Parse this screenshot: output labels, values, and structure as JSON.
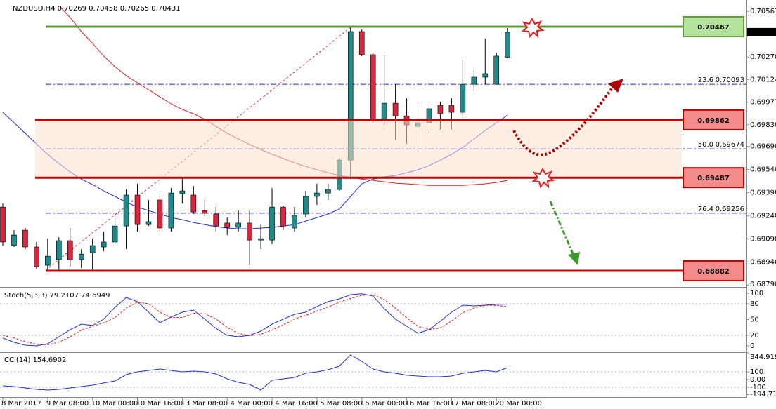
{
  "chart_data": [
    {
      "type": "candlestick",
      "title": "NZDUSD,H4 0.70269 0.70458 0.70265 0.70431",
      "categories": [
        "8 Mar 2017",
        null,
        null,
        null,
        "9 Mar 08:00",
        null,
        null,
        null,
        "10 Mar 00:00",
        null,
        null,
        null,
        "10 Mar 16:00",
        null,
        null,
        null,
        "13 Mar 08:00",
        null,
        null,
        null,
        "14 Mar 00:00",
        null,
        null,
        null,
        "14 Mar 16:00",
        null,
        null,
        null,
        "15 Mar 08:00",
        null,
        null,
        null,
        "16 Mar 00:00",
        null,
        null,
        null,
        "16 Mar 16:00",
        null,
        null,
        null,
        "17 Mar 08:00",
        null,
        null,
        null,
        "20 Mar 00:00",
        null
      ],
      "open": [
        0.69296,
        0.69046,
        0.69146,
        0.69037,
        0.68918,
        0.68955,
        0.69078,
        0.68955,
        0.69,
        0.69037,
        0.69069,
        0.69173,
        0.69374,
        0.69182,
        0.69342,
        0.6916,
        0.69383,
        0.69374,
        0.69273,
        0.69251,
        0.69192,
        0.69164,
        0.69192,
        0.69082,
        0.69082,
        0.69296,
        0.6916,
        0.69251,
        0.69365,
        0.69387,
        0.6941,
        0.69601,
        0.70435,
        0.70285,
        0.69857,
        0.6997,
        0.69888,
        0.6982,
        0.69843,
        0.69957,
        0.69957,
        0.69911,
        0.70093,
        0.70139,
        0.70093,
        0.70269
      ],
      "high": [
        0.69319,
        0.69146,
        0.6916,
        0.69069,
        0.69091,
        0.691,
        0.6916,
        0.69023,
        0.69091,
        0.69137,
        0.69251,
        0.6941,
        0.69447,
        0.69342,
        0.69387,
        0.69419,
        0.69478,
        0.69433,
        0.69342,
        0.69296,
        0.69228,
        0.69273,
        0.69273,
        0.69182,
        0.69419,
        0.69305,
        0.69296,
        0.69401,
        0.69447,
        0.69447,
        0.69615,
        0.70467,
        0.70449,
        0.70298,
        0.70285,
        0.70093,
        0.70002,
        0.69957,
        0.6998,
        0.6998,
        0.70002,
        0.70253,
        0.70184,
        0.70389,
        0.70298,
        0.70458
      ],
      "low": [
        0.69046,
        0.69037,
        0.69023,
        0.68895,
        0.68886,
        0.68886,
        0.68909,
        0.689,
        0.68886,
        0.69009,
        0.69055,
        0.69023,
        0.69137,
        0.69173,
        0.69137,
        0.69137,
        0.69319,
        0.69251,
        0.69237,
        0.69137,
        0.69114,
        0.69137,
        0.68918,
        0.69023,
        0.69055,
        0.69146,
        0.69137,
        0.69228,
        0.6931,
        0.69342,
        0.69401,
        0.69478,
        0.70276,
        0.69843,
        0.69829,
        0.69729,
        0.69706,
        0.69683,
        0.69775,
        0.69797,
        0.69797,
        0.69888,
        0.70048,
        0.70093,
        0.70093,
        0.70265
      ],
      "close": [
        0.69069,
        0.69114,
        0.69037,
        0.68909,
        0.68977,
        0.69078,
        0.68955,
        0.68991,
        0.69046,
        0.69069,
        0.69173,
        0.69374,
        0.69182,
        0.69201,
        0.6916,
        0.69387,
        0.69401,
        0.69264,
        0.69255,
        0.69173,
        0.69164,
        0.69192,
        0.69082,
        0.69091,
        0.69296,
        0.69173,
        0.69242,
        0.69365,
        0.69387,
        0.6941,
        0.69601,
        0.70435,
        0.70285,
        0.69857,
        0.6997,
        0.69888,
        0.69829,
        0.69843,
        0.69934,
        0.69902,
        0.69911,
        0.70093,
        0.70139,
        0.70162,
        0.70276,
        0.70431
      ],
      "up_color": "#1e8c8c",
      "down_color": "#d9263f",
      "lines": [
        {
          "color": "#e02020",
          "values": [
            null,
            null,
            null,
            null,
            null,
            0.70604,
            0.70526,
            0.70435,
            0.70358,
            0.70276,
            0.70207,
            0.70148,
            0.70103,
            0.70057,
            0.70011,
            0.69966,
            0.69929,
            0.69902,
            0.69866,
            0.6982,
            0.69775,
            0.69738,
            0.69702,
            0.6967,
            0.69638,
            0.69611,
            0.69583,
            0.6956,
            0.69538,
            0.69519,
            0.69501,
            0.69488,
            0.69478,
            0.69469,
            0.6946,
            0.69451,
            0.69447,
            0.69442,
            0.69437,
            0.69437,
            0.69437,
            0.69437,
            0.69442,
            0.69447,
            0.69456,
            0.69469
          ]
        },
        {
          "color": "#2030d0",
          "values": [
            0.69911,
            0.69843,
            0.69775,
            0.69706,
            0.69638,
            0.69579,
            0.69524,
            0.69478,
            0.69442,
            0.69401,
            0.69365,
            0.69328,
            0.69296,
            0.69273,
            0.69251,
            0.69228,
            0.69214,
            0.69196,
            0.69182,
            0.69169,
            0.6916,
            0.69155,
            0.69155,
            0.6916,
            0.69164,
            0.69173,
            0.69182,
            0.69205,
            0.69228,
            0.69251,
            0.69283,
            0.69365,
            0.69447,
            0.69478,
            0.69492,
            0.69501,
            0.69519,
            0.69538,
            0.69565,
            0.69601,
            0.69638,
            0.69683,
            0.69738,
            0.69793,
            0.69843,
            0.69893
          ]
        }
      ],
      "ylim": [
        0.68782,
        0.7064
      ],
      "yticks": [
        0.70567,
        {
          "value": 0.7027,
          "label": "0.70270"
        },
        0.70124,
        0.69977,
        {
          "value": 0.6983,
          "label": "0.69830"
        },
        {
          "value": 0.6969,
          "label": "0.69690"
        },
        {
          "value": 0.6954,
          "label": "0.69540"
        },
        {
          "value": 0.6939,
          "label": "0.69390"
        },
        {
          "value": 0.6924,
          "label": "0.69240"
        },
        {
          "value": 0.6909,
          "label": "0.69090"
        },
        {
          "value": 0.6894,
          "label": "0.68940"
        },
        {
          "value": 0.6879,
          "label": "0.68790"
        }
      ],
      "last_price": 0.70431,
      "levels": [
        {
          "value": 0.70467,
          "color": "#5f9e3a",
          "box": "#b6e39b"
        },
        {
          "value": 0.69862,
          "color": "#c00000",
          "box": "#f28b8b"
        },
        {
          "value": 0.69487,
          "color": "#c00000",
          "box": "#f28b8b"
        },
        {
          "value": 0.68882,
          "color": "#c00000",
          "box": "#f28b8b"
        }
      ],
      "fib_levels": [
        {
          "ratio": 23.6,
          "value": 0.70093
        },
        {
          "ratio": {
            "value": 50,
            "label": "50.0"
          },
          "value": 0.69674
        },
        {
          "ratio": 76.4,
          "value": 0.69256
        }
      ]
    },
    {
      "type": "line",
      "title": "Stoch(5,3,3) 79.2107 74.6949",
      "series": [
        {
          "color": "#2030d0",
          "values": [
            14.7,
            6.7,
            1.3,
            0,
            4,
            17.3,
            30.7,
            41.3,
            38.7,
            50.7,
            73.3,
            92,
            84,
            64,
            44,
            54.7,
            64,
            68,
            50.7,
            33.3,
            20,
            17.3,
            20,
            28,
            41.3,
            50.7,
            60,
            64,
            74.7,
            84,
            89.3,
            97.3,
            99,
            94.7,
            70.7,
            50.7,
            37.3,
            24,
            30.7,
            46.7,
            64,
            77.3,
            76,
            77.3,
            78.7,
            79.2107
          ]
        },
        {
          "color": "#e02020",
          "dashed": true,
          "values": [
            20,
            15,
            8,
            3,
            2,
            7,
            17,
            30,
            37,
            44,
            54,
            72,
            83,
            80,
            64,
            54,
            54,
            62,
            61,
            51,
            35,
            24,
            19,
            22,
            30,
            40,
            51,
            58,
            66,
            74,
            83,
            90,
            96,
            97,
            88,
            72,
            53,
            37,
            31,
            34,
            47,
            63,
            72,
            77,
            77,
            74.6949
          ]
        }
      ],
      "ylim": [
        -10.7,
        109.3
      ],
      "yticks": [
        100,
        80,
        50,
        20,
        0
      ],
      "levels": [
        80,
        20
      ]
    },
    {
      "type": "line",
      "title": "CCI(14) 154.6902",
      "series": [
        {
          "color": "#2030d0",
          "values": [
            -82,
            -91,
            -109,
            -127,
            -136,
            -127,
            -109,
            -91,
            -73,
            -45,
            -18,
            64,
            100,
            118,
            136,
            118,
            100,
            109,
            100,
            73,
            9,
            -36,
            -64,
            -136,
            -9,
            9,
            27,
            82,
            100,
            127,
            173,
            318,
            236,
            136,
            100,
            82,
            55,
            45,
            36,
            36,
            45,
            82,
            100,
            118,
            100,
            154.6902
          ]
        }
      ],
      "ylim": [
        -218,
        345
      ],
      "yticks": [
        344.9194,
        100,
        {
          "value": 0,
          "label": "0.00"
        },
        -100,
        -194.7117
      ],
      "levels": [
        100,
        -100
      ]
    }
  ]
}
